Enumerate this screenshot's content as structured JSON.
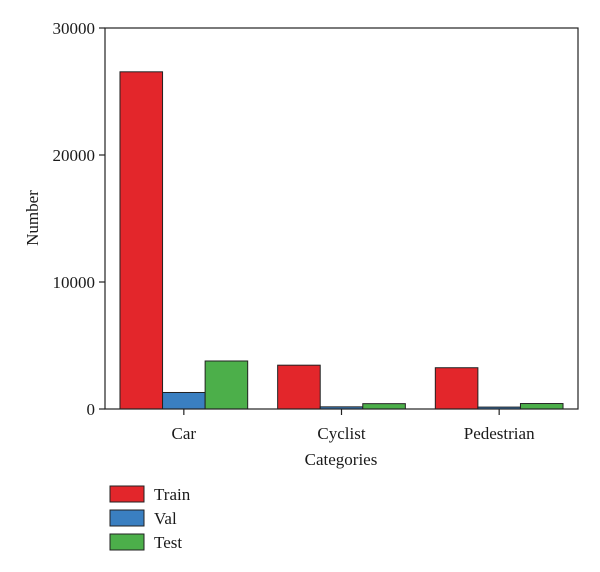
{
  "chart_data": {
    "type": "bar",
    "categories": [
      "Car",
      "Cyclist",
      "Pedestrian"
    ],
    "series": [
      {
        "name": "Train",
        "values": [
          26550,
          3450,
          3250
        ]
      },
      {
        "name": "Val",
        "values": [
          1300,
          170,
          150
        ]
      },
      {
        "name": "Test",
        "values": [
          3780,
          420,
          430
        ]
      }
    ],
    "xlabel": "Categories",
    "ylabel": "Number",
    "ylim": [
      0,
      30000
    ],
    "yticks": [
      "0",
      "10000",
      "20000",
      "30000"
    ],
    "grid": false,
    "legend_placement": "bottom-left"
  },
  "colors": {
    "Train": "#e3262b",
    "Val": "#3a7fc1",
    "Test": "#4caf4a"
  }
}
